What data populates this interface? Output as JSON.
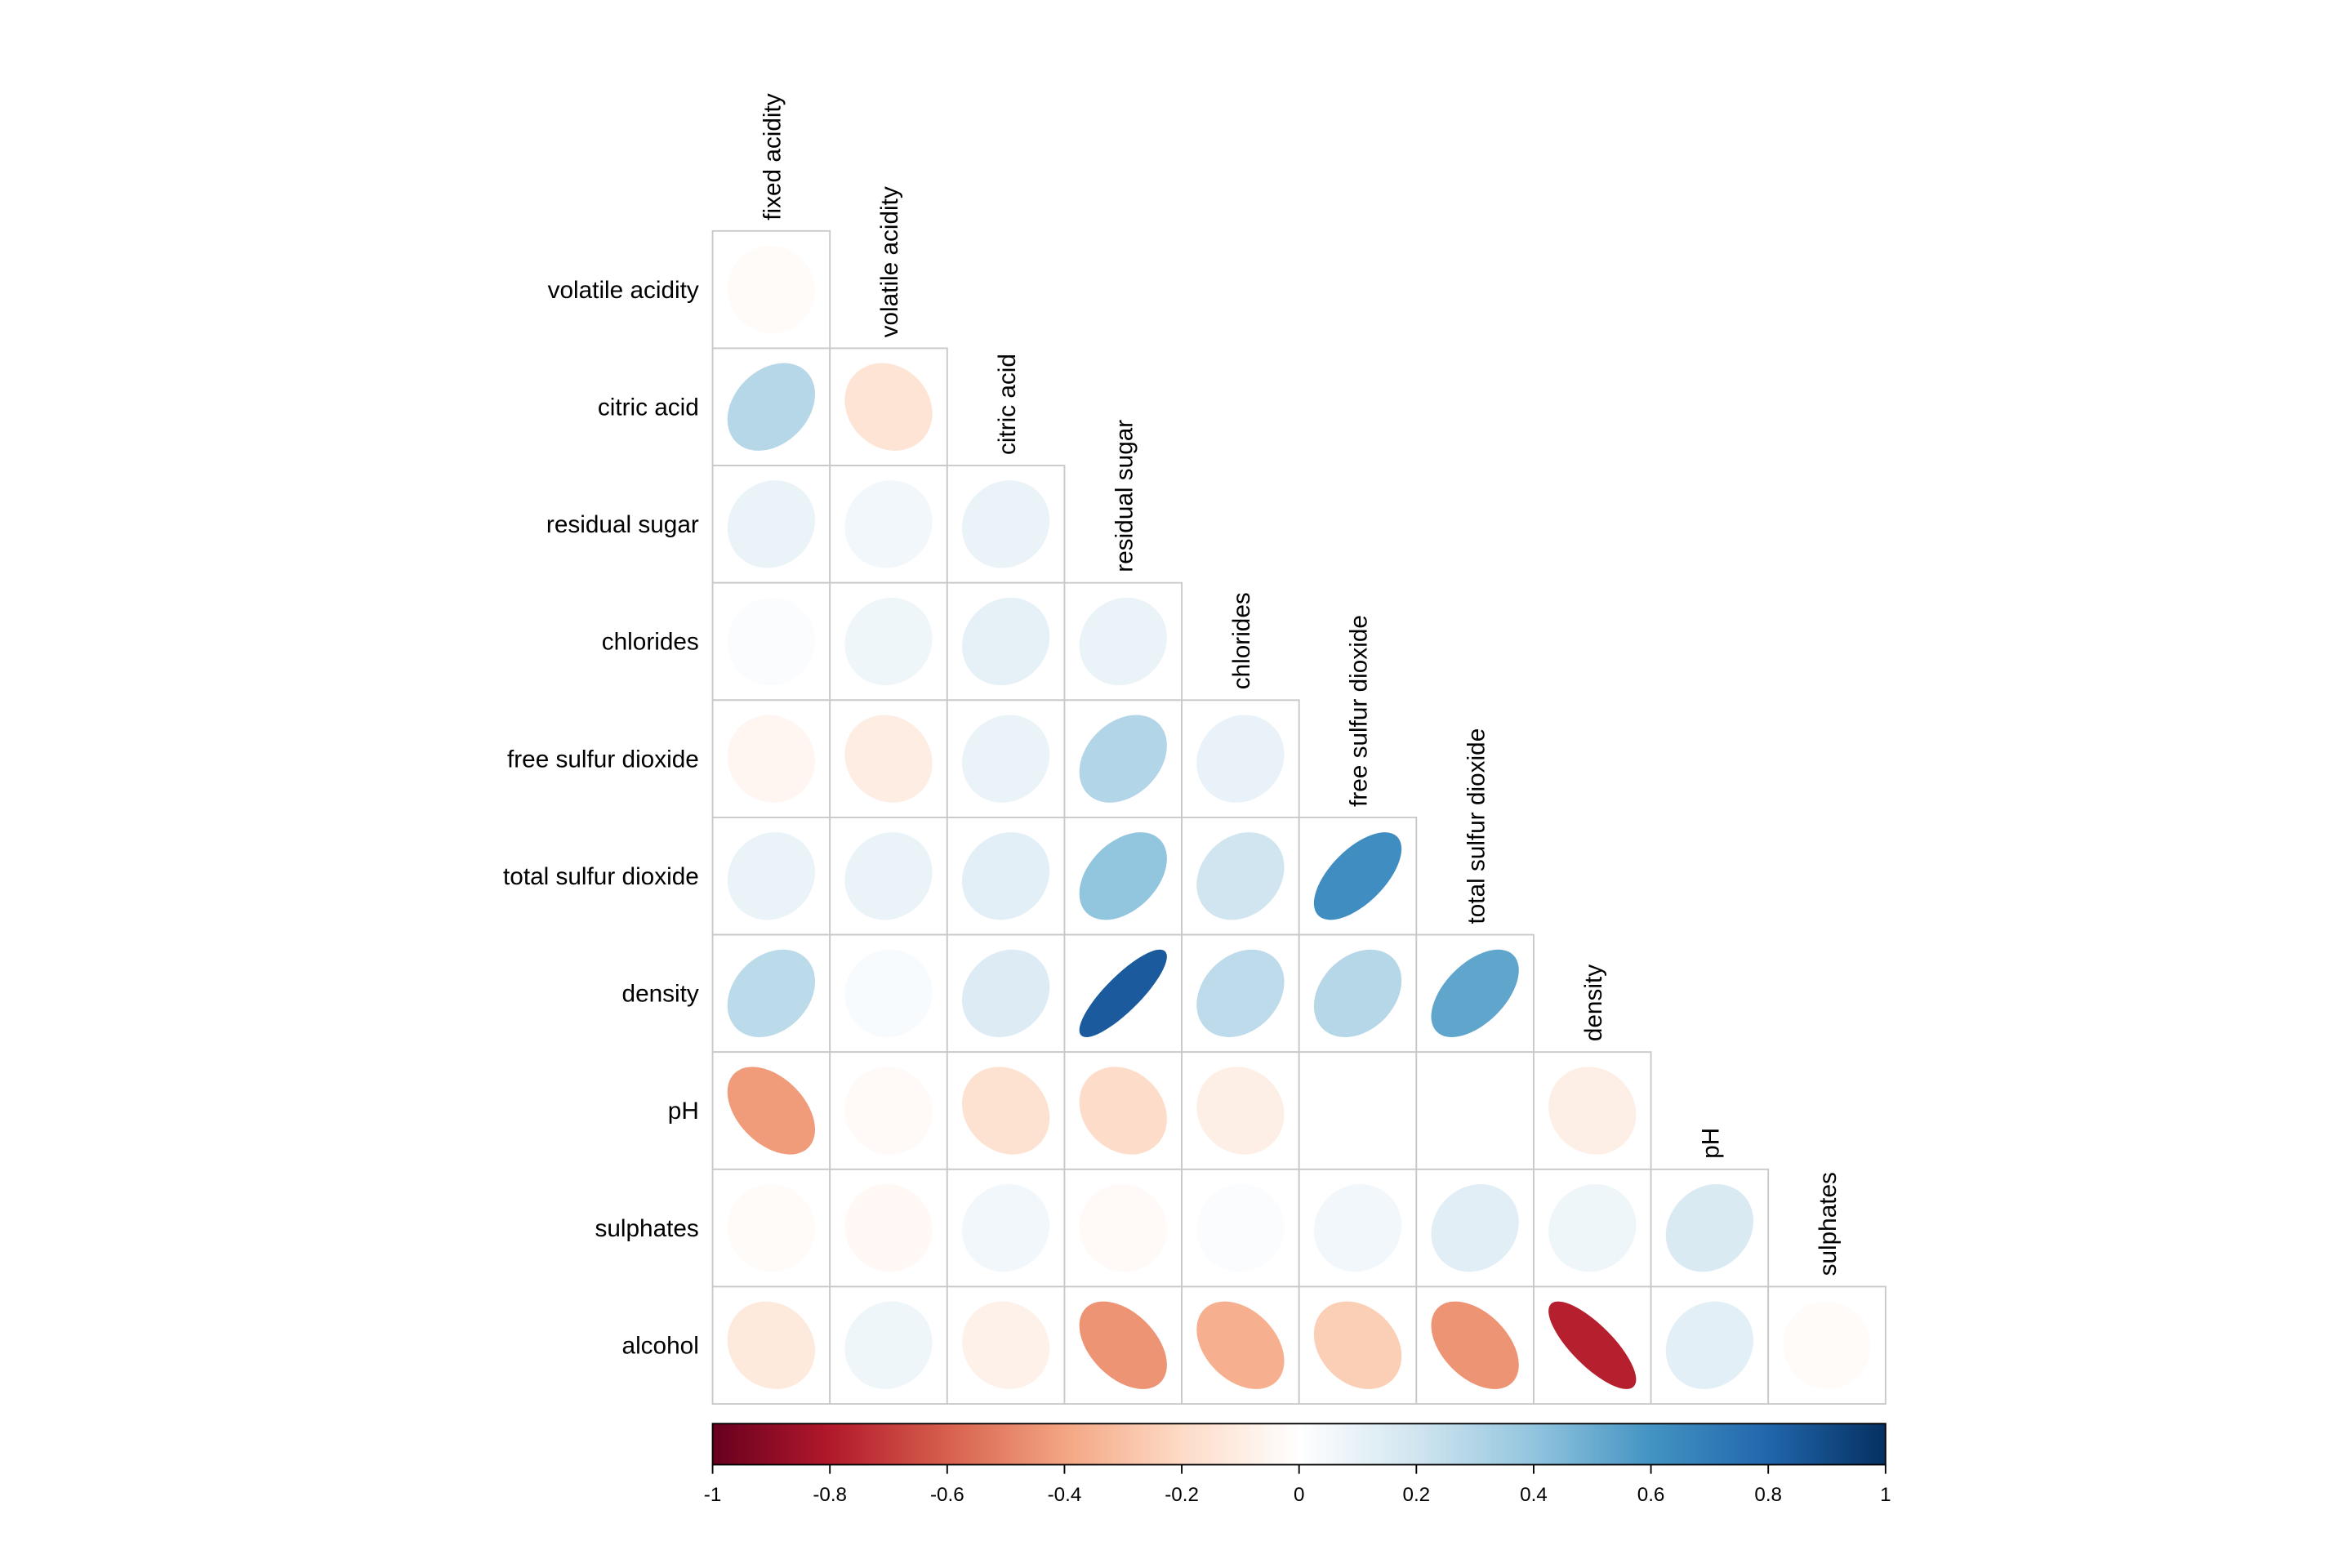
{
  "chart_data": {
    "type": "heatmap",
    "subtype": "correlation-ellipse-lower-triangle",
    "title": "",
    "col_labels": [
      "fixed acidity",
      "volatile acidity",
      "citric acid",
      "residual sugar",
      "chlorides",
      "free sulfur dioxide",
      "total sulfur dioxide",
      "density",
      "pH",
      "sulphates"
    ],
    "row_labels": [
      "volatile acidity",
      "citric acid",
      "residual sugar",
      "chlorides",
      "free sulfur dioxide",
      "total sulfur dioxide",
      "density",
      "pH",
      "sulphates",
      "alcohol"
    ],
    "values": [
      [
        -0.02
      ],
      [
        0.29,
        -0.15
      ],
      [
        0.09,
        0.06,
        0.09
      ],
      [
        0.02,
        0.07,
        0.11,
        0.09
      ],
      [
        -0.05,
        -0.1,
        0.09,
        0.3,
        0.1
      ],
      [
        0.09,
        0.09,
        0.12,
        0.4,
        0.2,
        0.62
      ],
      [
        0.27,
        0.03,
        0.15,
        0.84,
        0.26,
        0.29,
        0.53
      ],
      [
        -0.43,
        -0.03,
        -0.16,
        -0.19,
        -0.09,
        0.0,
        0.0,
        -0.09
      ],
      [
        -0.02,
        -0.04,
        0.06,
        -0.03,
        0.02,
        0.06,
        0.13,
        0.07,
        0.16
      ],
      [
        -0.12,
        0.07,
        -0.08,
        -0.45,
        -0.36,
        -0.25,
        -0.45,
        -0.78,
        0.12,
        -0.02
      ]
    ],
    "colorbar": {
      "range": [
        -1,
        1
      ],
      "ticks": [
        "-1",
        "-0.8",
        "-0.6",
        "-0.4",
        "-0.2",
        "0",
        "0.2",
        "0.4",
        "0.6",
        "0.8",
        "1"
      ],
      "colors": [
        "#67001f",
        "#b2182b",
        "#d6604d",
        "#f4a582",
        "#fddbc7",
        "#ffffff",
        "#d1e5f0",
        "#92c5de",
        "#4393c3",
        "#2166ac",
        "#053061"
      ]
    },
    "grid": true,
    "legend": "bottom"
  }
}
